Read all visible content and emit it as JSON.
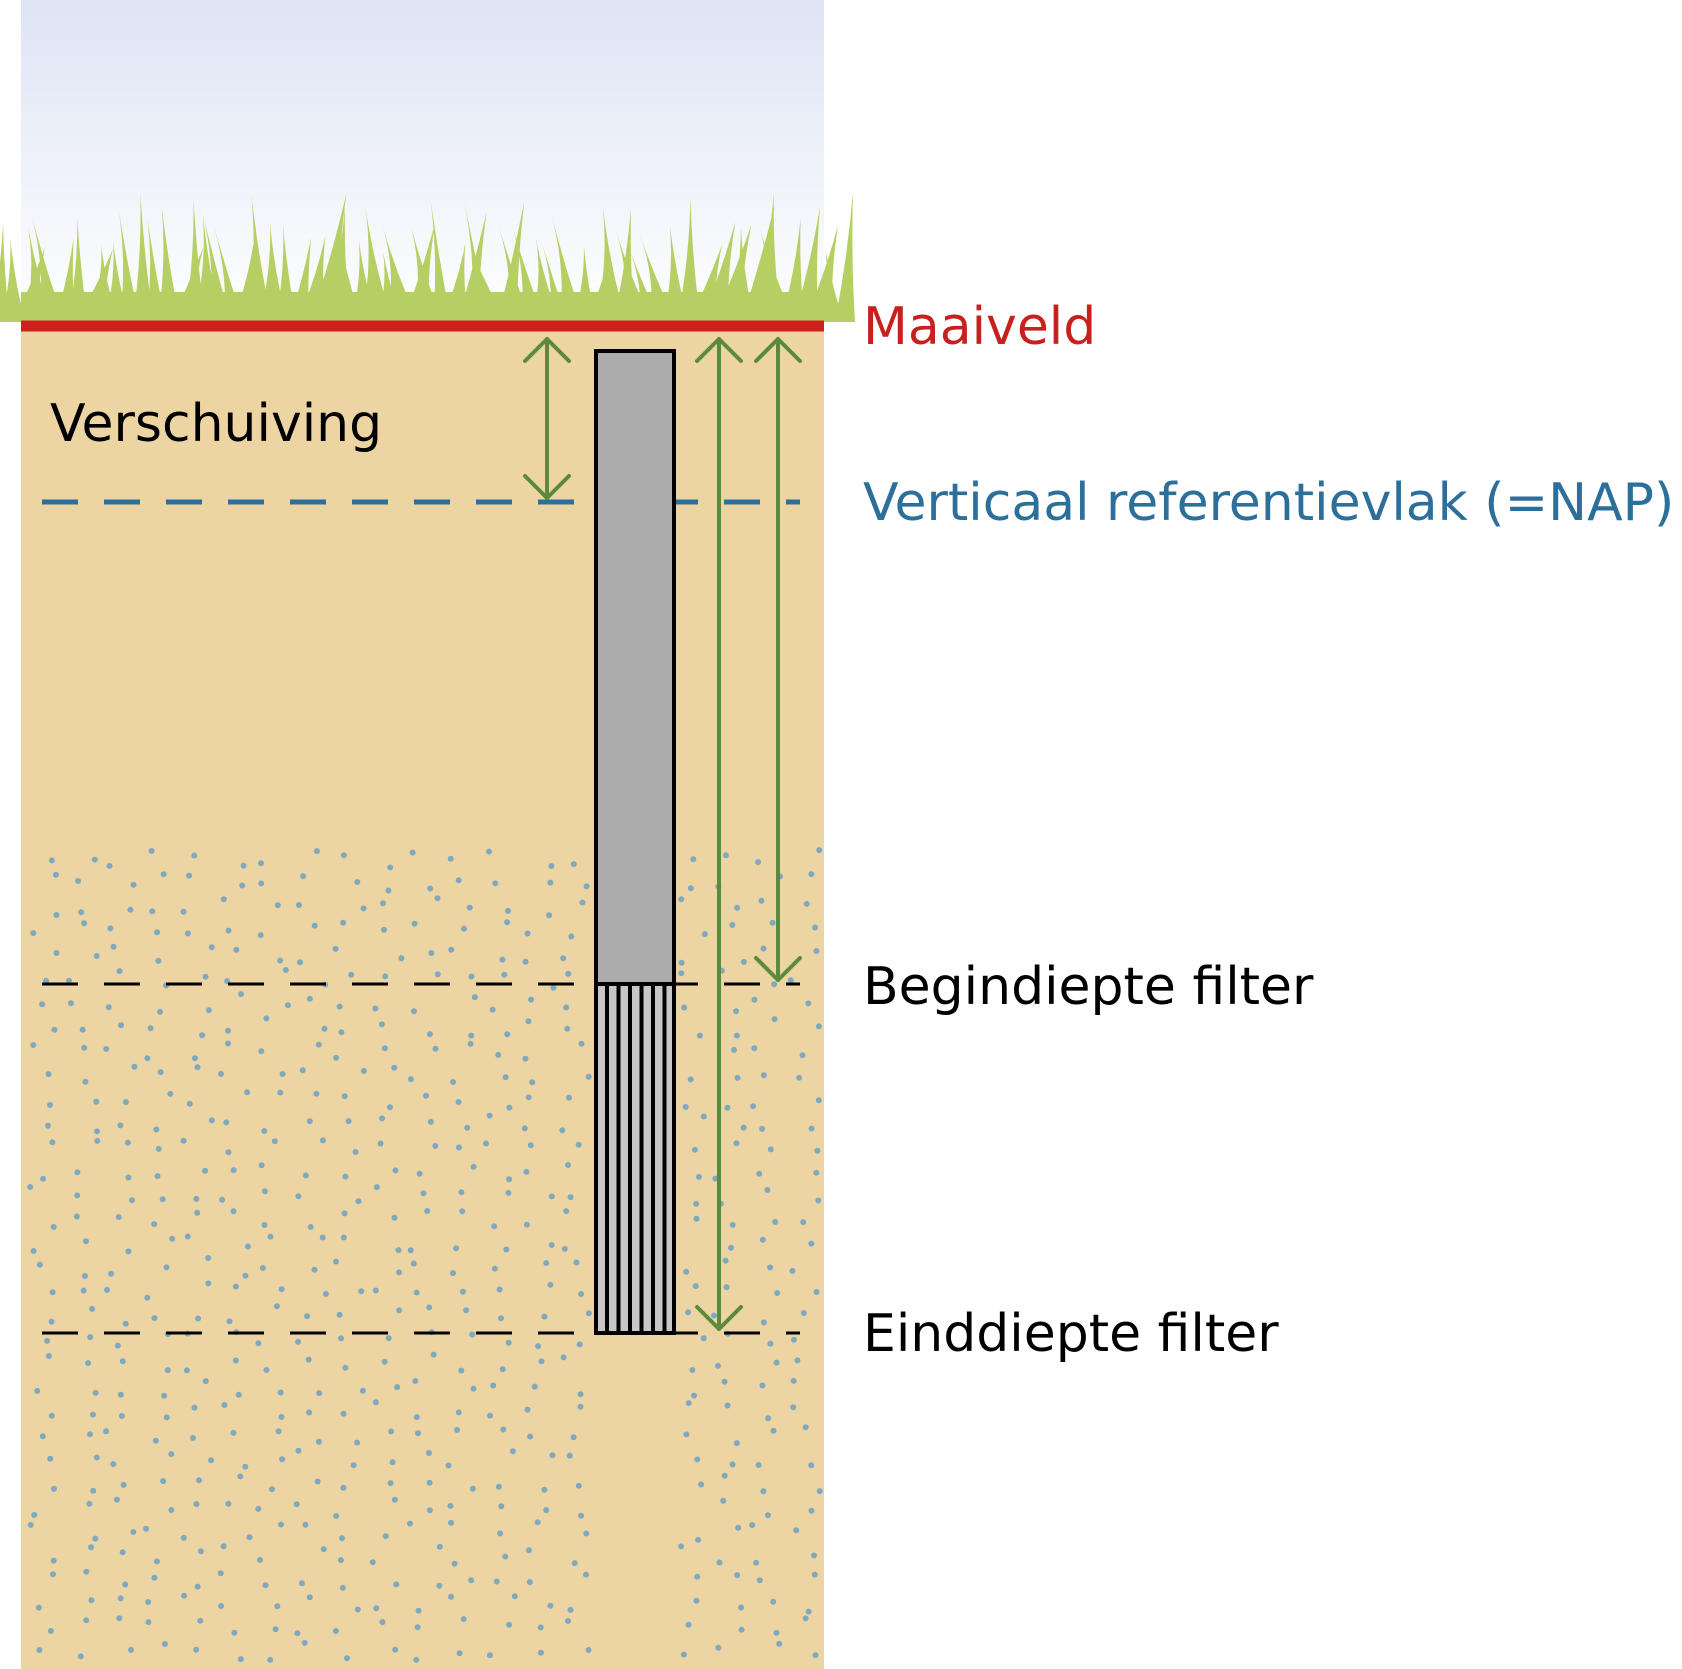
{
  "labels": {
    "maaiveld": "Maaiveld",
    "verschuiving": "Verschuiving",
    "referentievlak": "Verticaal referentievlak (=NAP)",
    "begindiepte": "Begindiepte filter",
    "einddiepte": "Einddiepte filter"
  },
  "colors": {
    "sky_top": "#dde4f4",
    "sky_bottom": "#ffffff",
    "grass": "#b5cf63",
    "soil": "#edd5a3",
    "sand_dots": "#7fa9bf",
    "maaiveld_line": "#d0201e",
    "nap_line": "#2b6f9a",
    "arrow": "#5c8a3a",
    "pipe": "#acacac",
    "filter_stripe": "#c7c7c7",
    "outline": "#000000"
  },
  "icons": {
    "grass": "grass-icon",
    "sand": "sand-dots-pattern"
  }
}
